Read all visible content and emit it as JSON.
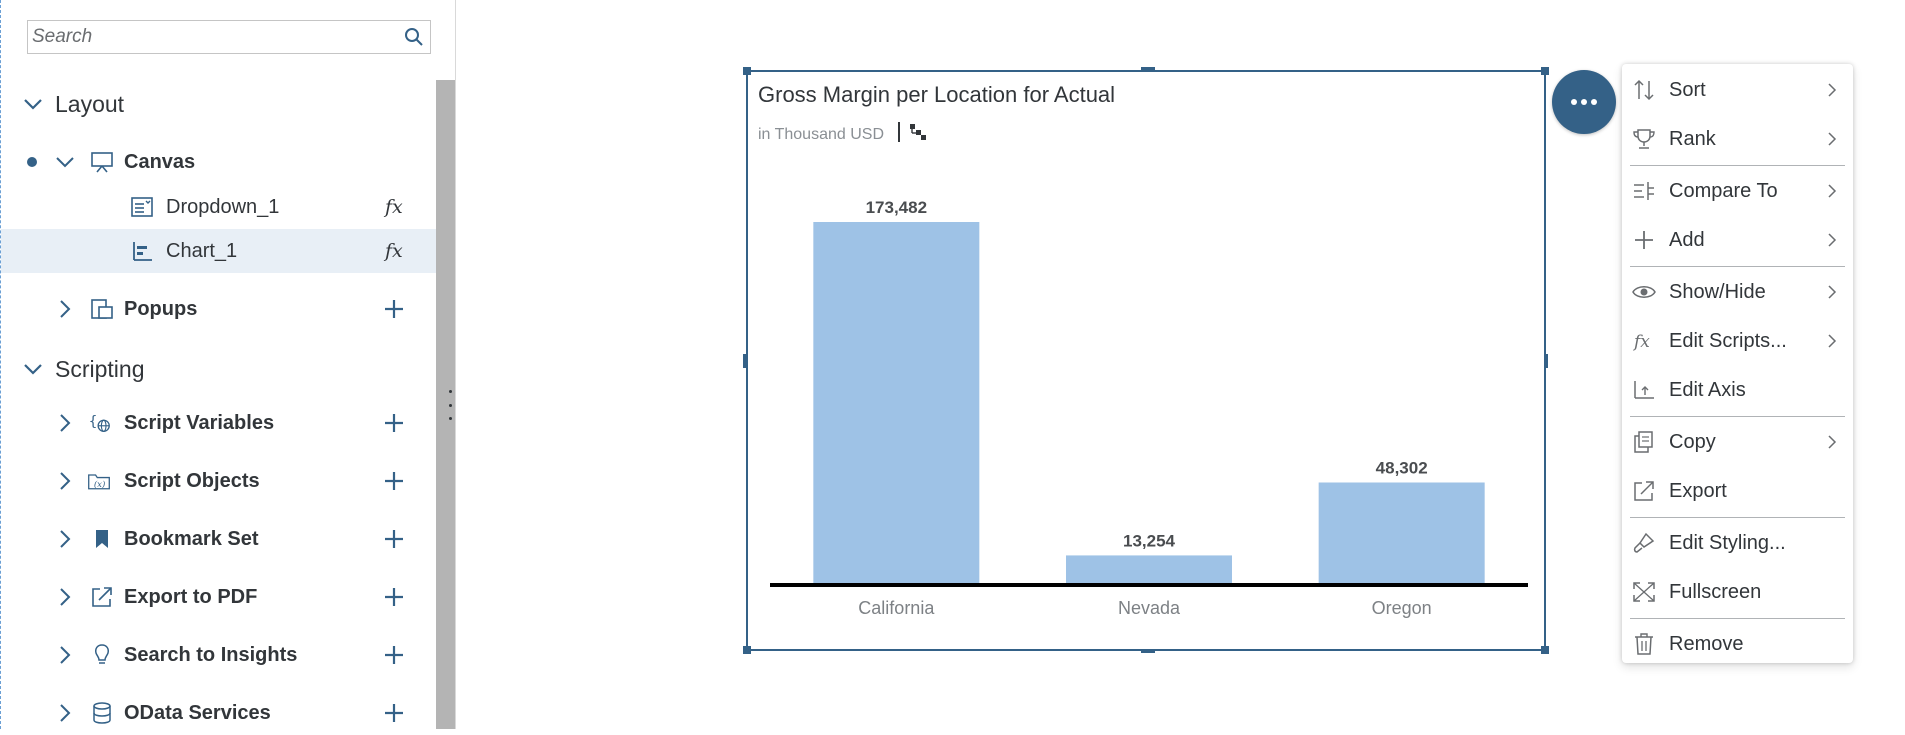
{
  "outline": {
    "search": {
      "placeholder": "Search",
      "value": ""
    },
    "layout_section": {
      "label": "Layout"
    },
    "canvas": {
      "label": "Canvas",
      "children": [
        {
          "label": "Dropdown_1",
          "action": "fx"
        },
        {
          "label": "Chart_1",
          "action": "fx"
        }
      ]
    },
    "popups": {
      "label": "Popups"
    },
    "scripting_section": {
      "label": "Scripting"
    },
    "scripting_items": [
      {
        "label": "Script Variables",
        "icon": "script-variables-icon"
      },
      {
        "label": "Script Objects",
        "icon": "script-objects-icon"
      },
      {
        "label": "Bookmark Set",
        "icon": "bookmark-icon"
      },
      {
        "label": "Export to PDF",
        "icon": "export-icon"
      },
      {
        "label": "Search to Insights",
        "icon": "lightbulb-icon"
      },
      {
        "label": "OData Services",
        "icon": "database-icon"
      }
    ]
  },
  "chart": {
    "title": "Gross Margin per Location for Actual",
    "subtitle": "in Thousand USD"
  },
  "chart_data": {
    "type": "bar",
    "title": "Gross Margin per Location for Actual",
    "subtitle": "in Thousand USD",
    "categories": [
      "California",
      "Nevada",
      "Oregon"
    ],
    "values": [
      173482,
      13254,
      48302
    ],
    "data_labels": [
      "173,482",
      "13,254",
      "48,302"
    ],
    "bar_color": "#9ec2e6",
    "grid": false,
    "legend": "none"
  },
  "context_menu": {
    "items": [
      {
        "label": "Sort",
        "icon": "sort-icon",
        "submenu": true
      },
      {
        "label": "Rank",
        "icon": "trophy-icon",
        "submenu": true
      },
      {
        "label": "Compare To",
        "icon": "compare-icon",
        "submenu": true
      },
      {
        "label": "Add",
        "icon": "add-icon",
        "submenu": true
      },
      {
        "label": "Show/Hide",
        "icon": "eye-icon",
        "submenu": true
      },
      {
        "label": "Edit Scripts...",
        "icon": "fx-icon",
        "submenu": true
      },
      {
        "label": "Edit Axis",
        "icon": "axis-icon",
        "submenu": false
      },
      {
        "label": "Copy",
        "icon": "copy-icon",
        "submenu": true
      },
      {
        "label": "Export",
        "icon": "export-icon",
        "submenu": false
      },
      {
        "label": "Edit Styling...",
        "icon": "brush-icon",
        "submenu": false
      },
      {
        "label": "Fullscreen",
        "icon": "fullscreen-icon",
        "submenu": false
      },
      {
        "label": "Remove",
        "icon": "trash-icon",
        "submenu": false
      }
    ]
  },
  "colors": {
    "accent": "#346187",
    "bar": "#9ec2e6",
    "selected_row": "#e8eff6"
  }
}
